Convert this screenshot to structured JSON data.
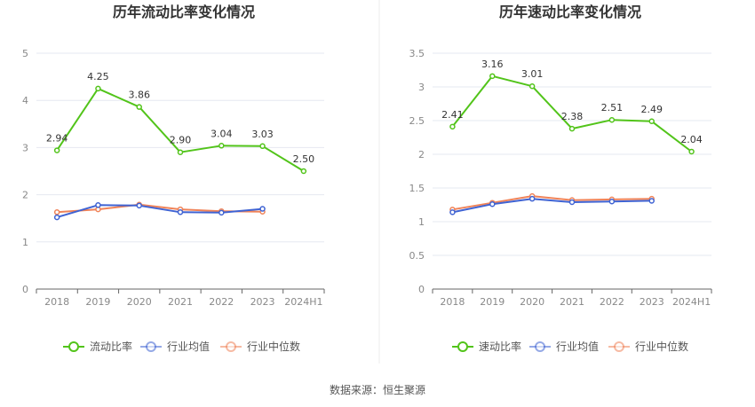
{
  "chart_data": [
    {
      "type": "line",
      "title": "历年流动比率变化情况",
      "categories": [
        "2018",
        "2019",
        "2020",
        "2021",
        "2022",
        "2023",
        "2024H1"
      ],
      "ylim": [
        0,
        5
      ],
      "yticks": [
        "0",
        "1",
        "2",
        "3",
        "4",
        "5"
      ],
      "grid": true,
      "legend_position": "bottom",
      "series": [
        {
          "name": "流动比率",
          "color": "#52c41a",
          "values": [
            2.94,
            4.25,
            3.86,
            2.9,
            3.04,
            3.03,
            2.5
          ],
          "labels": [
            "2.94",
            "4.25",
            "3.86",
            "2.90",
            "3.04",
            "3.03",
            "2.50"
          ]
        },
        {
          "name": "行业均值",
          "color": "#3f63d3",
          "values": [
            1.52,
            1.78,
            1.77,
            1.63,
            1.62,
            1.7,
            null
          ]
        },
        {
          "name": "行业中位数",
          "color": "#f08358",
          "values": [
            1.63,
            1.69,
            1.79,
            1.69,
            1.65,
            1.64,
            null
          ]
        }
      ]
    },
    {
      "type": "line",
      "title": "历年速动比率变化情况",
      "categories": [
        "2018",
        "2019",
        "2020",
        "2021",
        "2022",
        "2023",
        "2024H1"
      ],
      "ylim": [
        0,
        3.5
      ],
      "yticks": [
        "0",
        "0.5",
        "1",
        "1.5",
        "2",
        "2.5",
        "3",
        "3.5"
      ],
      "grid": true,
      "legend_position": "bottom",
      "series": [
        {
          "name": "速动比率",
          "color": "#52c41a",
          "values": [
            2.41,
            3.16,
            3.01,
            2.38,
            2.51,
            2.49,
            2.04
          ],
          "labels": [
            "2.41",
            "3.16",
            "3.01",
            "2.38",
            "2.51",
            "2.49",
            "2.04"
          ]
        },
        {
          "name": "行业均值",
          "color": "#3f63d3",
          "values": [
            1.14,
            1.26,
            1.34,
            1.29,
            1.3,
            1.31,
            null
          ]
        },
        {
          "name": "行业中位数",
          "color": "#f08358",
          "values": [
            1.18,
            1.28,
            1.38,
            1.32,
            1.33,
            1.34,
            null
          ]
        }
      ]
    }
  ],
  "footer": {
    "source": "数据来源：恒生聚源"
  },
  "colors": {
    "axis": "#666666",
    "grid": "#e6e8f0",
    "divider": "#eeeeee",
    "legend_inactive_fill": "#ffffff"
  }
}
